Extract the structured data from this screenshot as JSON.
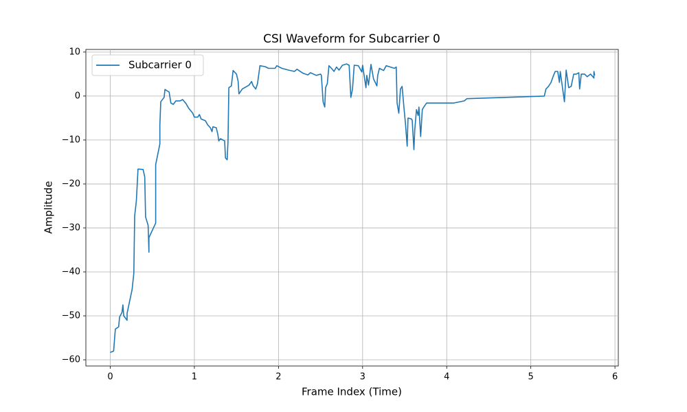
{
  "chart_data": {
    "type": "line",
    "title": "CSI Waveform for Subcarrier 0",
    "xlabel": "Frame Index (Time)",
    "ylabel": "Amplitude",
    "xlim": [
      -0.29,
      6.04
    ],
    "ylim": [
      -61.4,
      10.6
    ],
    "xticks": [
      0,
      1,
      2,
      3,
      4,
      5,
      6
    ],
    "yticks": [
      {
        "value": -60,
        "label": "−60"
      },
      {
        "value": -50,
        "label": "−50"
      },
      {
        "value": -40,
        "label": "−40"
      },
      {
        "value": -30,
        "label": "−30"
      },
      {
        "value": -20,
        "label": "−20"
      },
      {
        "value": -10,
        "label": "−10"
      },
      0,
      10
    ],
    "grid": true,
    "legend": "upper left",
    "x": [
      0,
      0.04,
      0.06,
      0.1,
      0.11,
      0.14,
      0.15,
      0.16,
      0.2,
      0.2,
      0.26,
      0.28,
      0.29,
      0.31,
      0.33,
      0.39,
      0.41,
      0.42,
      0.45,
      0.46,
      0.46,
      0.54,
      0.54,
      0.59,
      0.59,
      0.6,
      0.64,
      0.65,
      0.7,
      0.72,
      0.75,
      0.78,
      0.83,
      0.86,
      0.9,
      0.93,
      0.98,
      1.0,
      1.04,
      1.06,
      1.08,
      1.13,
      1.16,
      1.19,
      1.21,
      1.22,
      1.26,
      1.28,
      1.29,
      1.31,
      1.36,
      1.37,
      1.39,
      1.4,
      1.41,
      1.44,
      1.46,
      1.5,
      1.52,
      1.53,
      1.57,
      1.65,
      1.68,
      1.7,
      1.73,
      1.75,
      1.78,
      1.84,
      1.88,
      1.96,
      1.98,
      2.04,
      2.12,
      2.19,
      2.22,
      2.29,
      2.35,
      2.38,
      2.45,
      2.5,
      2.51,
      2.53,
      2.55,
      2.56,
      2.58,
      2.6,
      2.63,
      2.66,
      2.69,
      2.72,
      2.76,
      2.81,
      2.84,
      2.86,
      2.88,
      2.9,
      2.95,
      2.99,
      3.0,
      3.04,
      3.05,
      3.07,
      3.1,
      3.13,
      3.17,
      3.18,
      3.2,
      3.25,
      3.28,
      3.33,
      3.38,
      3.4,
      3.41,
      3.43,
      3.45,
      3.47,
      3.49,
      3.51,
      3.53,
      3.54,
      3.58,
      3.59,
      3.61,
      3.62,
      3.64,
      3.66,
      3.67,
      3.69,
      3.71,
      3.72,
      3.76,
      4.08,
      4.21,
      4.24,
      5.16,
      5.18,
      5.21,
      5.24,
      5.27,
      5.29,
      5.32,
      5.34,
      5.35,
      5.4,
      5.42,
      5.45,
      5.48,
      5.51,
      5.54,
      5.57,
      5.58,
      5.6,
      5.64,
      5.67,
      5.71,
      5.75,
      5.75,
      5.76
    ],
    "series": [
      {
        "name": "Subcarrier 0",
        "color": "#1f77b4",
        "values": [
          -58.3,
          -58,
          -53,
          -52.5,
          -50.3,
          -49.2,
          -47.5,
          -50,
          -51,
          -49.4,
          -44,
          -40.3,
          -27.3,
          -23.8,
          -16.6,
          -16.7,
          -18.4,
          -27.5,
          -29.4,
          -35.5,
          -32.2,
          -28.9,
          -15.6,
          -10.9,
          -6.6,
          -1.3,
          -0.3,
          1.5,
          0.9,
          -1.6,
          -1.9,
          -1.1,
          -1.1,
          -0.8,
          -1.7,
          -2.7,
          -3.9,
          -4.8,
          -4.8,
          -4.2,
          -5.2,
          -5.6,
          -6.6,
          -7.2,
          -8.1,
          -7.0,
          -7.2,
          -8.8,
          -10.2,
          -9.7,
          -10.2,
          -14.1,
          -14.5,
          -10.2,
          1.9,
          2.3,
          5.8,
          5.0,
          3.4,
          0.5,
          1.6,
          2.5,
          3.3,
          2.3,
          1.6,
          2.8,
          6.9,
          6.7,
          6.3,
          6.3,
          6.9,
          6.3,
          5.9,
          5.6,
          6.1,
          5.2,
          4.8,
          5.3,
          4.7,
          5.0,
          4.7,
          -1.3,
          -2.5,
          1.9,
          2.8,
          6.9,
          6.3,
          5.6,
          6.6,
          5.9,
          7.0,
          7.3,
          7.0,
          -0.3,
          1.6,
          7.0,
          6.9,
          5.5,
          7.0,
          1.9,
          4.7,
          2.5,
          7.2,
          3.9,
          2.3,
          4.7,
          6.3,
          5.8,
          6.9,
          6.6,
          6.3,
          6.6,
          -1.6,
          -3.9,
          1.6,
          2.2,
          -2.3,
          -6.3,
          -11.4,
          -5.0,
          -5.2,
          -5.5,
          -12.2,
          -7.8,
          -3.1,
          -4.4,
          -2.5,
          -9.2,
          -3.1,
          -2.7,
          -1.6,
          -1.6,
          -1.1,
          -0.6,
          0,
          1.6,
          2.2,
          3.1,
          4.7,
          5.6,
          5.6,
          3.1,
          5.6,
          -1.3,
          5.9,
          1.9,
          2.2,
          5.0,
          5.0,
          5.3,
          1.6,
          5.0,
          5.0,
          4.4,
          5.0,
          4.1,
          5.6,
          4.7
        ]
      }
    ]
  }
}
